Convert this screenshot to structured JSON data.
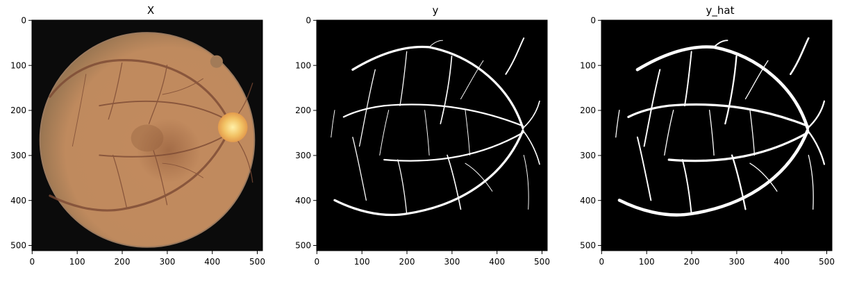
{
  "figure": {
    "background": "#ffffff",
    "axes_color": "#000000",
    "panels": [
      {
        "id": "X",
        "title": "X",
        "kind": "rgb-fundus",
        "image_size": [
          512,
          512
        ],
        "x_ticks": [
          "0",
          "100",
          "200",
          "300",
          "400",
          "500"
        ],
        "y_ticks": [
          "0",
          "100",
          "200",
          "300",
          "400",
          "500"
        ],
        "colors": {
          "background": "#0b0b0b",
          "retina_edge": "#b8855a",
          "retina_mid": "#c48b5e",
          "retina_center": "#a36c47",
          "optic_disc": "#f2c264",
          "vessel": "#7c4a34"
        }
      },
      {
        "id": "y",
        "title": "y",
        "kind": "binary-mask",
        "image_size": [
          512,
          512
        ],
        "x_ticks": [
          "0",
          "100",
          "200",
          "300",
          "400",
          "500"
        ],
        "y_ticks": [
          "0",
          "100",
          "200",
          "300",
          "400",
          "500"
        ],
        "colors": {
          "background": "#000000",
          "vessel": "#ffffff"
        }
      },
      {
        "id": "y_hat",
        "title": "y_hat",
        "kind": "binary-mask",
        "image_size": [
          512,
          512
        ],
        "x_ticks": [
          "0",
          "100",
          "200",
          "300",
          "400",
          "500"
        ],
        "y_ticks": [
          "0",
          "100",
          "200",
          "300",
          "400",
          "500"
        ],
        "colors": {
          "background": "#000000",
          "vessel": "#ffffff"
        }
      }
    ]
  }
}
